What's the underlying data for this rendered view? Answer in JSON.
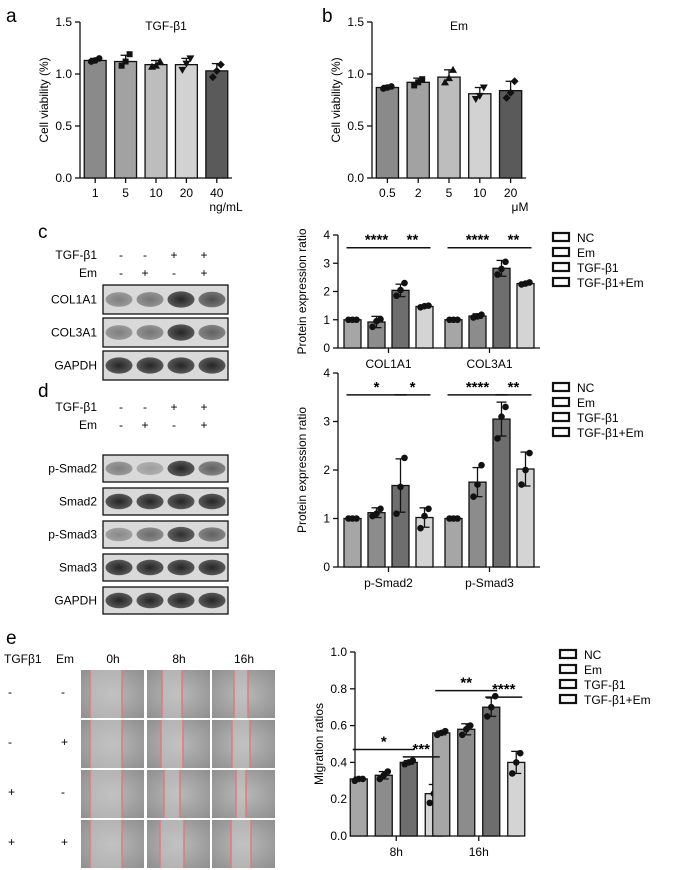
{
  "panels": {
    "a": "a",
    "b": "b",
    "c": "c",
    "d": "d",
    "e": "e"
  },
  "colors": {
    "NC": "#a6a6a6",
    "Em": "#8c8c8c",
    "TGF": "#6e6e6e",
    "TGFEm": "#d4d4d4",
    "via1": "#8a8a8a",
    "via2": "#a2a2a2",
    "via3": "#bdbdbd",
    "via4": "#d2d2d2",
    "via5": "#5a5a5a"
  },
  "chart_data": [
    {
      "id": "a",
      "type": "bar",
      "title": "TGF-β1",
      "categories": [
        "1",
        "5",
        "10",
        "20",
        "40"
      ],
      "values": [
        1.13,
        1.12,
        1.09,
        1.09,
        1.03
      ],
      "errors": [
        0.02,
        0.06,
        0.04,
        0.06,
        0.07
      ],
      "points": [
        [
          1.12,
          1.13,
          1.15
        ],
        [
          1.08,
          1.12,
          1.19
        ],
        [
          1.07,
          1.08,
          1.12
        ],
        [
          1.04,
          1.1,
          1.15
        ],
        [
          0.97,
          1.03,
          1.09
        ]
      ],
      "unit": "ng/mL",
      "ylabel": "Cell viability (%)",
      "ylim": [
        0,
        1.5
      ],
      "yticks": [
        "0.0",
        "0.5",
        "1.0",
        "1.5"
      ]
    },
    {
      "id": "b",
      "type": "bar",
      "title": "Em",
      "categories": [
        "0.5",
        "2",
        "5",
        "10",
        "20"
      ],
      "values": [
        0.87,
        0.92,
        0.97,
        0.81,
        0.84
      ],
      "errors": [
        0.02,
        0.04,
        0.07,
        0.06,
        0.09
      ],
      "points": [
        [
          0.86,
          0.87,
          0.88
        ],
        [
          0.89,
          0.92,
          0.95
        ],
        [
          0.92,
          0.96,
          1.04
        ],
        [
          0.76,
          0.79,
          0.87
        ],
        [
          0.77,
          0.82,
          0.93
        ]
      ],
      "unit": "μM",
      "ylabel": "Cell viability (%)",
      "ylim": [
        0,
        1.5
      ],
      "yticks": [
        "0.0",
        "0.5",
        "1.0",
        "1.5"
      ]
    },
    {
      "id": "c",
      "type": "bar",
      "ylabel": "Protein expression ratio",
      "groups": [
        "COL1A1",
        "COL3A1"
      ],
      "series": [
        {
          "name": "NC",
          "values": [
            1.0,
            1.0
          ],
          "errors": [
            0.02,
            0.02
          ],
          "points": [
            [
              1.0,
              1.0,
              1.0
            ],
            [
              1.0,
              1.0,
              1.0
            ]
          ]
        },
        {
          "name": "Em",
          "values": [
            0.92,
            1.13
          ],
          "errors": [
            0.2,
            0.08
          ],
          "points": [
            [
              0.75,
              0.95,
              1.02
            ],
            [
              1.08,
              1.12,
              1.18
            ]
          ]
        },
        {
          "name": "TGF-β1",
          "values": [
            2.04,
            2.82
          ],
          "errors": [
            0.22,
            0.28
          ],
          "points": [
            [
              1.85,
              2.05,
              2.3
            ],
            [
              2.6,
              2.8,
              3.05
            ]
          ]
        },
        {
          "name": "TGF-β1+Em",
          "values": [
            1.47,
            2.28
          ],
          "errors": [
            0.04,
            0.05
          ],
          "points": [
            [
              1.44,
              1.48,
              1.5
            ],
            [
              2.25,
              2.28,
              2.32
            ]
          ]
        }
      ],
      "ylim": [
        0,
        4
      ],
      "yticks": [
        "0",
        "1",
        "2",
        "3",
        "4"
      ],
      "sig": [
        {
          "text": "****",
          "group": 0,
          "from": 0,
          "to": 2,
          "y": 3.55
        },
        {
          "text": "**",
          "group": 0,
          "from": 2,
          "to": 3,
          "y": 3.55
        },
        {
          "text": "****",
          "group": 1,
          "from": 0,
          "to": 2,
          "y": 3.55
        },
        {
          "text": "**",
          "group": 1,
          "from": 2,
          "to": 3,
          "y": 3.55
        }
      ]
    },
    {
      "id": "d",
      "type": "bar",
      "ylabel": "Protein expression ratio",
      "groups": [
        "p-Smad2",
        "p-Smad3"
      ],
      "series": [
        {
          "name": "NC",
          "values": [
            1.0,
            1.0
          ],
          "errors": [
            0.02,
            0.02
          ],
          "points": [
            [
              1.0,
              1.0,
              1.0
            ],
            [
              1.0,
              1.0,
              1.0
            ]
          ]
        },
        {
          "name": "Em",
          "values": [
            1.12,
            1.75
          ],
          "errors": [
            0.1,
            0.3
          ],
          "points": [
            [
              1.05,
              1.1,
              1.2
            ],
            [
              1.45,
              1.7,
              2.1
            ]
          ]
        },
        {
          "name": "TGF-β1",
          "values": [
            1.68,
            3.05
          ],
          "errors": [
            0.55,
            0.35
          ],
          "points": [
            [
              1.1,
              1.65,
              2.25
            ],
            [
              2.65,
              3.1,
              3.3
            ]
          ]
        },
        {
          "name": "TGF-β1+Em",
          "values": [
            1.02,
            2.02
          ],
          "errors": [
            0.2,
            0.35
          ],
          "points": [
            [
              0.8,
              1.05,
              1.2
            ],
            [
              1.7,
              2.0,
              2.35
            ]
          ]
        }
      ],
      "ylim": [
        0,
        4
      ],
      "yticks": [
        "0",
        "1",
        "2",
        "3",
        "4"
      ],
      "sig": [
        {
          "text": "*",
          "group": 0,
          "from": 0,
          "to": 2,
          "y": 3.55
        },
        {
          "text": "*",
          "group": 0,
          "from": 2,
          "to": 3,
          "y": 3.55
        },
        {
          "text": "****",
          "group": 1,
          "from": 0,
          "to": 2,
          "y": 3.55
        },
        {
          "text": "**",
          "group": 1,
          "from": 2,
          "to": 3,
          "y": 3.55
        }
      ]
    },
    {
      "id": "e",
      "type": "bar",
      "ylabel": "Migration ratios",
      "groups": [
        "8h",
        "16h"
      ],
      "series": [
        {
          "name": "NC",
          "values": [
            0.31,
            0.56
          ],
          "errors": [
            0.01,
            0.01
          ],
          "points": [
            [
              0.3,
              0.31,
              0.31
            ],
            [
              0.55,
              0.56,
              0.57
            ]
          ]
        },
        {
          "name": "Em",
          "values": [
            0.33,
            0.58
          ],
          "errors": [
            0.02,
            0.03
          ],
          "points": [
            [
              0.31,
              0.33,
              0.35
            ],
            [
              0.55,
              0.58,
              0.6
            ]
          ]
        },
        {
          "name": "TGF-β1",
          "values": [
            0.4,
            0.7
          ],
          "errors": [
            0.01,
            0.05
          ],
          "points": [
            [
              0.39,
              0.4,
              0.41
            ],
            [
              0.65,
              0.7,
              0.76
            ]
          ]
        },
        {
          "name": "TGF-β1+Em",
          "values": [
            0.23,
            0.4
          ],
          "errors": [
            0.05,
            0.06
          ],
          "points": [
            [
              0.18,
              0.23,
              0.27
            ],
            [
              0.34,
              0.4,
              0.45
            ]
          ]
        }
      ],
      "ylim": [
        0,
        1.0
      ],
      "yticks": [
        "0.0",
        "0.2",
        "0.4",
        "0.6",
        "0.8",
        "1.0"
      ],
      "sig": [
        {
          "text": "*",
          "group": 0,
          "from": 0,
          "to": 2,
          "y": 0.47
        },
        {
          "text": "***",
          "group": 0,
          "from": 2,
          "to": 3,
          "y": 0.43
        },
        {
          "text": "**",
          "group": 1,
          "from": 0,
          "to": 2,
          "y": 0.79
        },
        {
          "text": "****",
          "group": 1,
          "from": 2,
          "to": 3,
          "y": 0.755
        }
      ]
    }
  ],
  "blots_c": {
    "header_rows": [
      {
        "label": "TGF-β1",
        "marks": [
          "-",
          "-",
          "+",
          "+"
        ]
      },
      {
        "label": "Em",
        "marks": [
          "-",
          "+",
          "-",
          "+"
        ]
      }
    ],
    "bands": [
      {
        "label": "COL1A1",
        "intensity": [
          0.45,
          0.5,
          0.9,
          0.7
        ]
      },
      {
        "label": "COL3A1",
        "intensity": [
          0.45,
          0.5,
          0.9,
          0.6
        ]
      },
      {
        "label": "GAPDH",
        "intensity": [
          0.9,
          0.9,
          0.9,
          0.9
        ]
      }
    ]
  },
  "blots_d": {
    "header_rows": [
      {
        "label": "TGF-β1",
        "marks": [
          "-",
          "-",
          "+",
          "+"
        ]
      },
      {
        "label": "Em",
        "marks": [
          "-",
          "+",
          "-",
          "+"
        ]
      }
    ],
    "bands": [
      {
        "label": "p-Smad2",
        "intensity": [
          0.45,
          0.3,
          0.9,
          0.6
        ]
      },
      {
        "label": "Smad2",
        "intensity": [
          0.9,
          0.9,
          0.9,
          0.9
        ]
      },
      {
        "label": "p-Smad3",
        "intensity": [
          0.4,
          0.55,
          0.85,
          0.6
        ]
      },
      {
        "label": "Smad3",
        "intensity": [
          0.9,
          0.9,
          0.9,
          0.9
        ]
      },
      {
        "label": "GAPDH",
        "intensity": [
          0.9,
          0.9,
          0.9,
          0.9
        ]
      }
    ]
  },
  "wound": {
    "col_headers": [
      "TGFβ1",
      "Em",
      "0h",
      "8h",
      "16h"
    ],
    "rows": [
      {
        "tgf": "-",
        "em": "-"
      },
      {
        "tgf": "-",
        "em": "+"
      },
      {
        "tgf": "+",
        "em": "-"
      },
      {
        "tgf": "+",
        "em": "+"
      }
    ]
  }
}
